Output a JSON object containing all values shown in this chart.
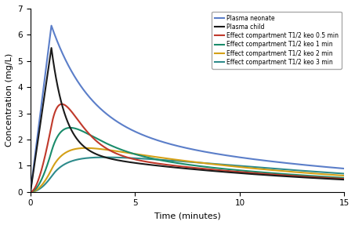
{
  "title": "",
  "xlabel": "Time (minutes)",
  "ylabel": "Concentration (mg/L)",
  "xlim": [
    0,
    15
  ],
  "ylim": [
    0,
    7
  ],
  "yticks": [
    0,
    1,
    2,
    3,
    4,
    5,
    6,
    7
  ],
  "xticks": [
    0,
    5,
    10,
    15
  ],
  "legend_entries": [
    "Plasma neonate",
    "Plasma child",
    "Effect compartment T1/2 keo 0.5 min",
    "Effect compartment T1/2 keo 1 min",
    "Effect compartment T1/2 keo 2 min",
    "Effect compartment T1/2 keo 3 min"
  ],
  "colors": {
    "plasma_neonate": "#5b7ec9",
    "plasma_child": "#1a1a1a",
    "keo_05": "#c0392b",
    "keo_1": "#1a8c6b",
    "keo_2": "#d4a017",
    "keo_3": "#2e8b8b"
  }
}
